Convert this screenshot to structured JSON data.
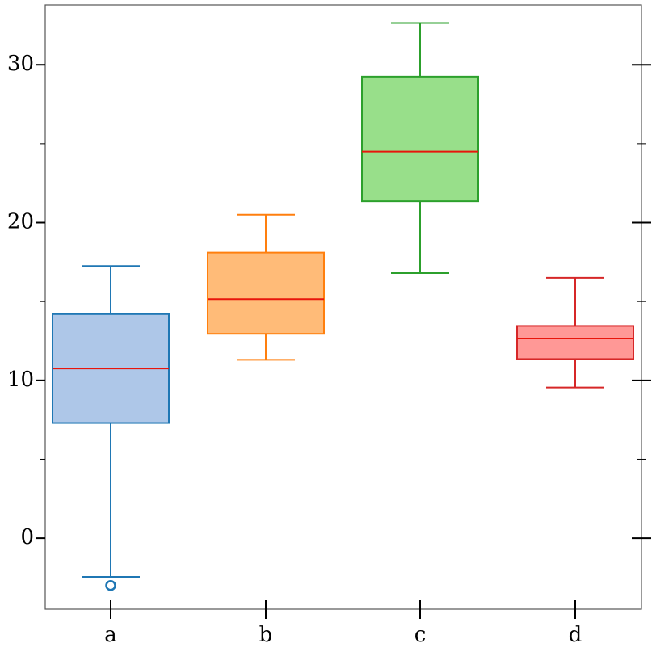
{
  "chart_data": {
    "type": "box",
    "categories": [
      "a",
      "b",
      "c",
      "d"
    ],
    "boxes": [
      {
        "whislo": -2.45,
        "q1": 7.3,
        "med": 10.75,
        "q3": 14.2,
        "whishi": 17.25,
        "fliers": [
          -3.0
        ],
        "color": "#1f77b4",
        "fill": "#aec7e8"
      },
      {
        "whislo": 11.3,
        "q1": 12.95,
        "med": 15.15,
        "q3": 18.1,
        "whishi": 20.5,
        "fliers": [],
        "color": "#ff7f0e",
        "fill": "#ffbb78"
      },
      {
        "whislo": 16.8,
        "q1": 21.35,
        "med": 24.5,
        "q3": 29.25,
        "whishi": 32.65,
        "fliers": [],
        "color": "#2ca02c",
        "fill": "#98df8a"
      },
      {
        "whislo": 9.55,
        "q1": 11.35,
        "med": 12.65,
        "q3": 13.45,
        "whishi": 16.5,
        "fliers": [],
        "color": "#d62728",
        "fill": "#ff9896"
      }
    ],
    "median_color": "#e8150b",
    "ylim": [
      -4.5,
      33.8
    ],
    "yticks": [
      0,
      10,
      20,
      30
    ],
    "minor_yticks": [
      5,
      15,
      25
    ]
  }
}
